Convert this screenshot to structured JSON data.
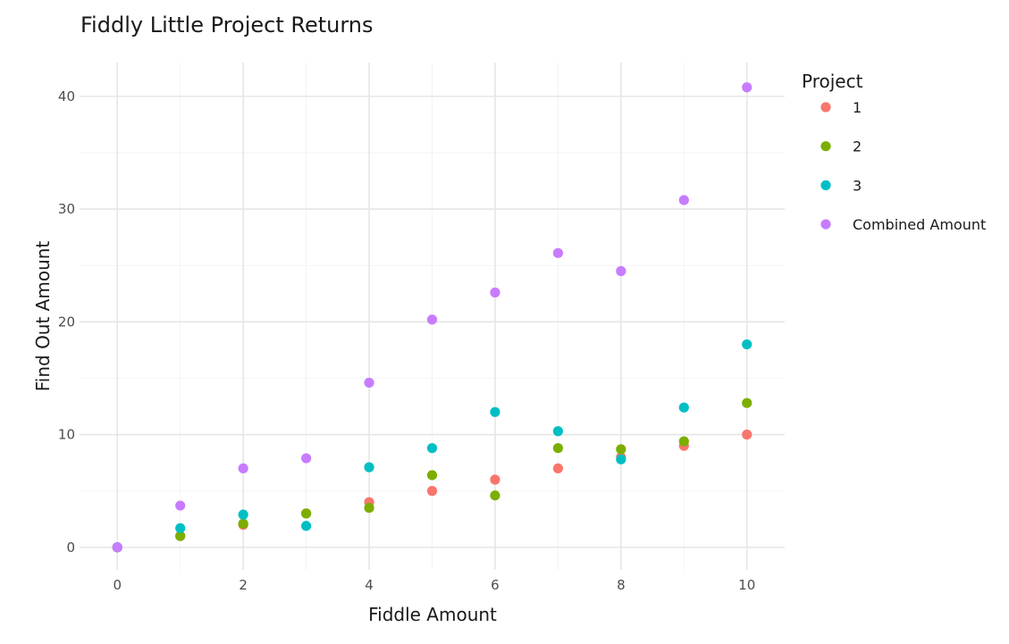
{
  "chart_data": {
    "type": "scatter",
    "title": "Fiddly Little Project Returns",
    "xlabel": "Fiddle Amount",
    "ylabel": "Find Out Amount",
    "xlim": [
      -0.6,
      10.6
    ],
    "ylim": [
      -2,
      43
    ],
    "xticks": [
      0,
      2,
      4,
      6,
      8,
      10
    ],
    "yticks": [
      0,
      10,
      20,
      30,
      40
    ],
    "grid": true,
    "legend": {
      "title": "Project",
      "position": "right"
    },
    "series": [
      {
        "name": "1",
        "color": "#F8766D",
        "x": [
          0,
          1,
          2,
          3,
          4,
          5,
          6,
          7,
          8,
          9,
          10
        ],
        "y": [
          0,
          1,
          2,
          3,
          4,
          5,
          6,
          7,
          8,
          9,
          10
        ]
      },
      {
        "name": "2",
        "color": "#7CAE00",
        "x": [
          0,
          1,
          2,
          3,
          4,
          5,
          6,
          7,
          8,
          9,
          10
        ],
        "y": [
          0,
          1,
          2.1,
          3,
          3.5,
          6.4,
          4.6,
          8.8,
          8.7,
          9.4,
          12.8
        ]
      },
      {
        "name": "3",
        "color": "#00BFC4",
        "x": [
          0,
          1,
          2,
          3,
          4,
          5,
          6,
          7,
          8,
          9,
          10
        ],
        "y": [
          0,
          1.7,
          2.9,
          1.9,
          7.1,
          8.8,
          12,
          10.3,
          7.8,
          12.4,
          18
        ]
      },
      {
        "name": "Combined Amount",
        "color": "#C77CFF",
        "x": [
          0,
          1,
          2,
          3,
          4,
          5,
          6,
          7,
          8,
          9,
          10
        ],
        "y": [
          0,
          3.7,
          7,
          7.9,
          14.6,
          20.2,
          22.6,
          26.1,
          24.5,
          30.8,
          40.8
        ]
      }
    ]
  }
}
